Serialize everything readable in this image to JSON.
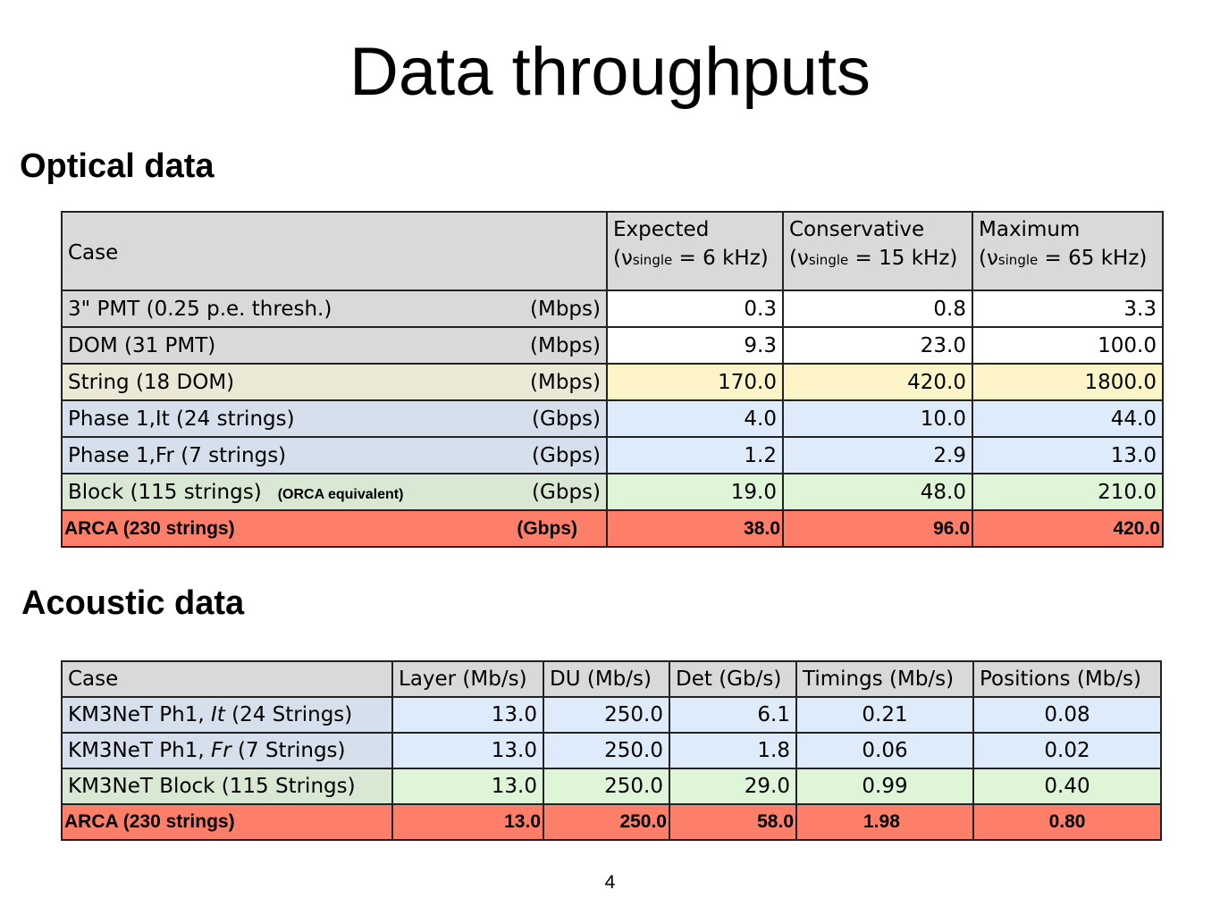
{
  "title": "Data throughputs",
  "optical": {
    "heading": "Optical data",
    "header": {
      "case": "Case",
      "columns": [
        {
          "title": "Expected",
          "nu": "(ν",
          "sub": "single",
          "rest": " = 6 kHz)"
        },
        {
          "title": "Conservative",
          "nu": "(ν",
          "sub": "single",
          "rest": " = 15 kHz)"
        },
        {
          "title": "Maximum",
          "nu": "(ν",
          "sub": "single",
          "rest": " = 65 kHz)"
        }
      ]
    },
    "rows": [
      {
        "case": "3\" PMT (0.25 p.e. thresh.)",
        "unit": "(Mbps)",
        "values": [
          "0.3",
          "0.8",
          "3.3"
        ]
      },
      {
        "case": "DOM  (31 PMT)",
        "unit": "(Mbps)",
        "values": [
          "9.3",
          "23.0",
          "100.0"
        ]
      },
      {
        "case": "String (18 DOM)",
        "unit": "(Mbps)",
        "values": [
          "170.0",
          "420.0",
          "1800.0"
        ]
      },
      {
        "case": "Phase 1,It (24 strings)",
        "unit": "(Gbps)",
        "values": [
          "4.0",
          "10.0",
          "44.0"
        ]
      },
      {
        "case": "Phase 1,Fr (7 strings)",
        "unit": "(Gbps)",
        "values": [
          "1.2",
          "2.9",
          "13.0"
        ]
      },
      {
        "case": "Block   (115 strings)",
        "note": "(ORCA equivalent)",
        "unit": "(Gbps)",
        "values": [
          "19.0",
          "48.0",
          "210.0"
        ]
      }
    ],
    "arca": {
      "case": "ARCA (230 strings)",
      "unit": "(Gbps)",
      "values": [
        "38.0",
        "96.0",
        "420.0"
      ]
    }
  },
  "acoustic": {
    "heading": "Acoustic data",
    "header": [
      "Case",
      "Layer (Mb/s)",
      "DU (Mb/s)",
      "Det (Gb/s)",
      "Timings (Mb/s)",
      "Positions (Mb/s)"
    ],
    "rows": [
      {
        "case_pre": "KM3NeT Ph1, ",
        "case_em": "It",
        "case_post": " (24 Strings)",
        "values": [
          "13.0",
          "250.0",
          "6.1",
          "0.21",
          "0.08"
        ]
      },
      {
        "case_pre": "KM3NeT Ph1, ",
        "case_em": "Fr",
        "case_post": " (7 Strings)",
        "values": [
          "13.0",
          "250.0",
          "1.8",
          "0.06",
          "0.02"
        ]
      },
      {
        "case_pre": "KM3NeT Block (115 Strings)",
        "case_em": "",
        "case_post": "",
        "values": [
          "13.0",
          "250.0",
          "29.0",
          "0.99",
          "0.40"
        ]
      }
    ],
    "arca": {
      "case": "ARCA (230 strings)",
      "values": [
        "13.0",
        "250.0",
        "58.0",
        "1.98",
        "0.80"
      ]
    }
  },
  "page_number": "4",
  "colors": {
    "arca_row": "#fd7f6a",
    "string_row": "#fdf5c8",
    "phase_rows": "#deebfb",
    "block_row": "#def5d8",
    "header": "#d9d9d9"
  }
}
